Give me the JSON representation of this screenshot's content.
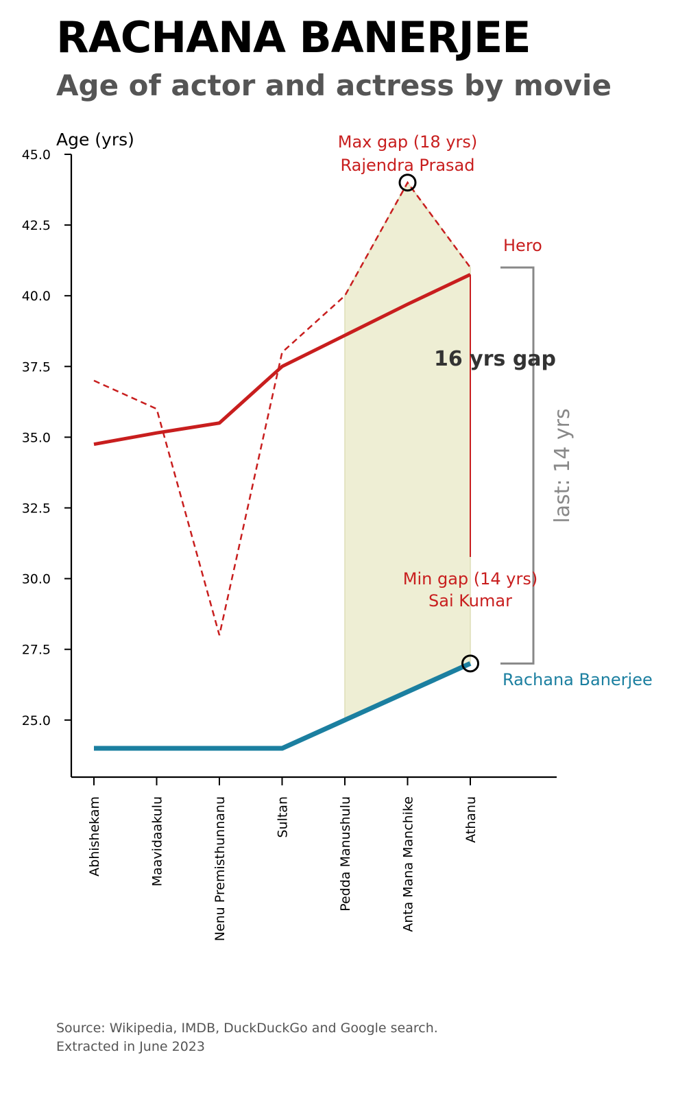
{
  "title": "RACHANA BANERJEE",
  "subtitle": "Age of actor and actress by movie",
  "source": {
    "line1": "Source: Wikipedia, IMDB, DuckDuckGo and Google search.",
    "line2": "Extracted in June 2023"
  },
  "colors": {
    "hero": "#c81e1e",
    "heroine": "#1b7fa0",
    "fill": "#eeeed2",
    "axis": "#000000",
    "bracket": "#888888",
    "gap_text": "#333333"
  },
  "chart_data": {
    "type": "line",
    "ylabel": "Age (yrs)",
    "ylim": [
      23,
      45
    ],
    "yticks": [
      "25.0",
      "27.5",
      "30.0",
      "32.5",
      "35.0",
      "37.5",
      "40.0",
      "42.5",
      "45.0"
    ],
    "ytick_values": [
      25,
      27.5,
      30,
      32.5,
      35,
      37.5,
      40,
      42.5,
      45
    ],
    "categories": [
      "Abhishekam",
      "Maavidaakulu",
      "Nenu Premisthunnanu",
      "Sultan",
      "Pedda Manushulu",
      "Anta Mana Manchike",
      "Athanu"
    ],
    "series": [
      {
        "name": "Hero",
        "style": "dashed",
        "values": [
          37,
          36,
          28,
          38,
          40,
          44,
          41
        ]
      },
      {
        "name": "Hero",
        "style": "trend",
        "values": [
          34.75,
          35.15,
          35.5,
          37.5,
          38.6,
          39.7,
          40.75
        ]
      },
      {
        "name": "Rachana Banerjee",
        "style": "solid",
        "values": [
          24,
          24,
          24,
          24,
          25,
          26,
          27
        ]
      }
    ],
    "shaded_range": {
      "from": "Pedda Manushulu",
      "to": "Athanu"
    },
    "annotations": {
      "max_gap_line1": "Max gap (18 yrs)",
      "max_gap_line2": "Rajendra Prasad",
      "min_gap_line1": "Min gap (14 yrs)",
      "min_gap_line2": "Sai Kumar",
      "trend_gap": "16 yrs gap",
      "last_gap": "last: 14 yrs",
      "hero_label": "Hero",
      "heroine_label": "Rachana Banerjee"
    }
  }
}
